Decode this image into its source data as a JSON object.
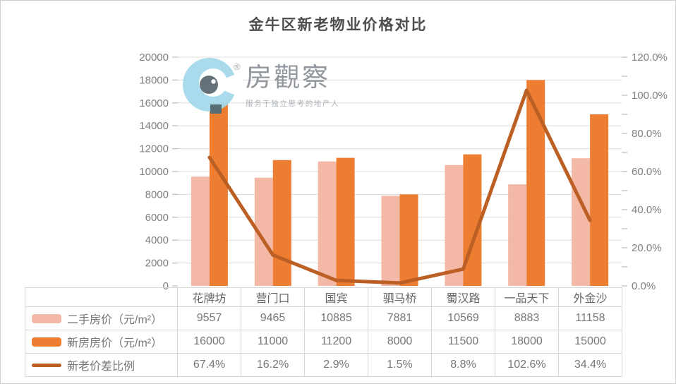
{
  "title": "金牛区新老物业价格对比",
  "watermark": {
    "brand": "房觀察",
    "tagline": "服务于独立思考的地产人",
    "reg": "®"
  },
  "colors": {
    "secondhand_bar": "#F4B9A6",
    "new_bar": "#ED7D31",
    "ratio_line": "#BC5F25",
    "grid": "#DCDCDC",
    "tick": "#BFBFBF",
    "axis_text": "#7F7F7F",
    "title_text": "#4D4D4D",
    "table_border": "#D8D8D8",
    "table_text": "#767676",
    "logo_blue": "#A6DAEB",
    "logo_pupil": "#5D6A72",
    "logo_square": "#4E6D78"
  },
  "chart_data": {
    "type": "bar",
    "subtype": "grouped-bars-with-line-dual-axis",
    "title": "金牛区新老物业价格对比",
    "categories": [
      "花牌坊",
      "营门口",
      "国宾",
      "驷马桥",
      "蜀汉路",
      "一品天下",
      "外金沙"
    ],
    "series": [
      {
        "name": "二手房价（元/m²）",
        "type": "bar",
        "axis": "left",
        "values": [
          9557,
          9465,
          10885,
          7881,
          10569,
          8883,
          11158
        ]
      },
      {
        "name": "新房房价（元/m²）",
        "type": "bar",
        "axis": "left",
        "values": [
          16000,
          11000,
          11200,
          8000,
          11500,
          18000,
          15000
        ]
      },
      {
        "name": "新老价差比例",
        "type": "line",
        "axis": "right",
        "values_percent": [
          67.4,
          16.2,
          2.9,
          1.5,
          8.8,
          102.6,
          34.4
        ]
      }
    ],
    "left_axis": {
      "min": 0,
      "max": 20000,
      "step": 2000,
      "labels": [
        "0",
        "2000",
        "4000",
        "6000",
        "8000",
        "10000",
        "12000",
        "14000",
        "16000",
        "18000",
        "20000"
      ]
    },
    "right_axis": {
      "min": 0,
      "max": 120,
      "step": 20,
      "minor_step": 10,
      "labels": [
        "0.0%",
        "20.0%",
        "40.0%",
        "60.0%",
        "80.0%",
        "100.0%",
        "120.0%"
      ]
    },
    "grid": true,
    "legend_position": "table-left-column"
  },
  "table": {
    "header_categories": [
      "花牌坊",
      "营门口",
      "国宾",
      "驷马桥",
      "蜀汉路",
      "一品天下",
      "外金沙"
    ],
    "rows": [
      {
        "label": "二手房价（元/m²）",
        "swatch": "secondhand_bar",
        "values": [
          "9557",
          "9465",
          "10885",
          "7881",
          "10569",
          "8883",
          "11158"
        ]
      },
      {
        "label": "新房房价（元/m²）",
        "swatch": "new_bar",
        "values": [
          "16000",
          "11000",
          "11200",
          "8000",
          "11500",
          "18000",
          "15000"
        ]
      },
      {
        "label": "新老价差比例",
        "swatch": "ratio_line",
        "values": [
          "67.4%",
          "16.2%",
          "2.9%",
          "1.5%",
          "8.8%",
          "102.6%",
          "34.4%"
        ]
      }
    ]
  }
}
